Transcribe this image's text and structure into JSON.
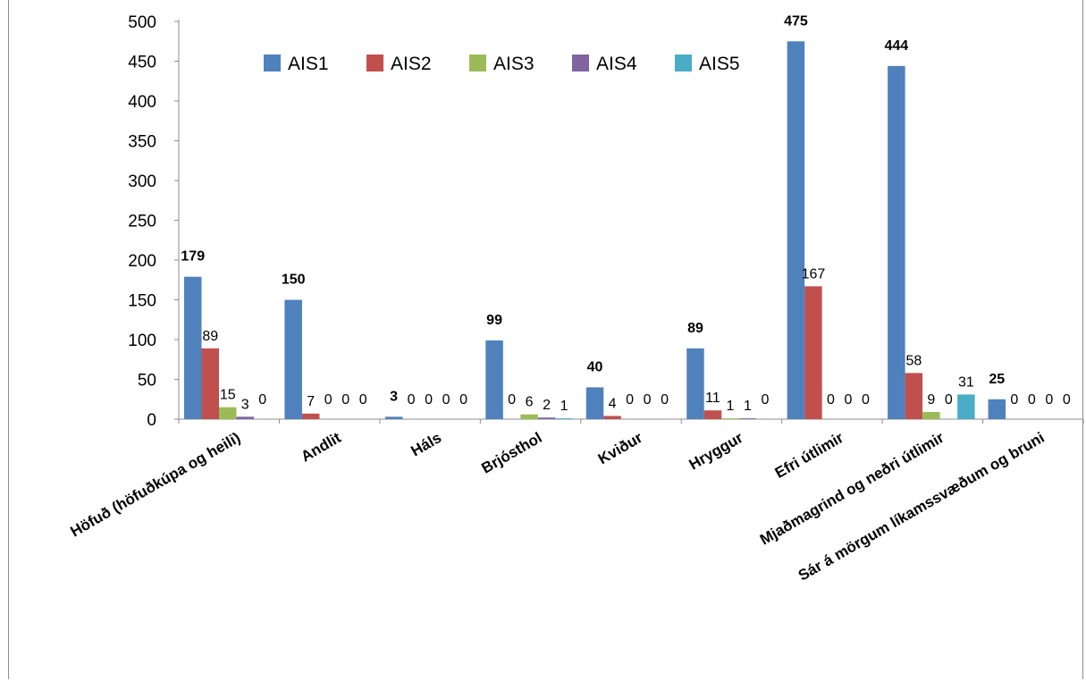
{
  "chart_data": {
    "type": "bar",
    "categories": [
      "Höfuð (höfuðkúpa og heili)",
      "Andlit",
      "Háls",
      "Brjósthol",
      "Kviður",
      "Hryggur",
      "Efri útlimir",
      "Mjaðmagrind og neðri útlimir",
      "Sár á mörgum líkamssvæðum og bruni"
    ],
    "series": [
      {
        "name": "AIS1",
        "color": "#4f81bd",
        "values": [
          179,
          150,
          3,
          99,
          40,
          89,
          475,
          444,
          25
        ]
      },
      {
        "name": "AIS2",
        "color": "#c0504d",
        "values": [
          89,
          7,
          0,
          0,
          4,
          11,
          167,
          58,
          0
        ]
      },
      {
        "name": "AIS3",
        "color": "#9bbb59",
        "values": [
          15,
          0,
          0,
          6,
          0,
          1,
          0,
          9,
          0
        ]
      },
      {
        "name": "AIS4",
        "color": "#8064a2",
        "values": [
          3,
          0,
          0,
          2,
          0,
          1,
          0,
          0,
          0
        ]
      },
      {
        "name": "AIS5",
        "color": "#4bacc6",
        "values": [
          0,
          0,
          0,
          1,
          0,
          0,
          0,
          31,
          0
        ]
      }
    ],
    "ylim": [
      0,
      500
    ],
    "yticks": [
      0,
      50,
      100,
      150,
      200,
      250,
      300,
      350,
      400,
      450,
      500
    ],
    "title": "",
    "xlabel": "",
    "ylabel": "",
    "legend_position": "top",
    "grid": false,
    "data_labels": true
  }
}
